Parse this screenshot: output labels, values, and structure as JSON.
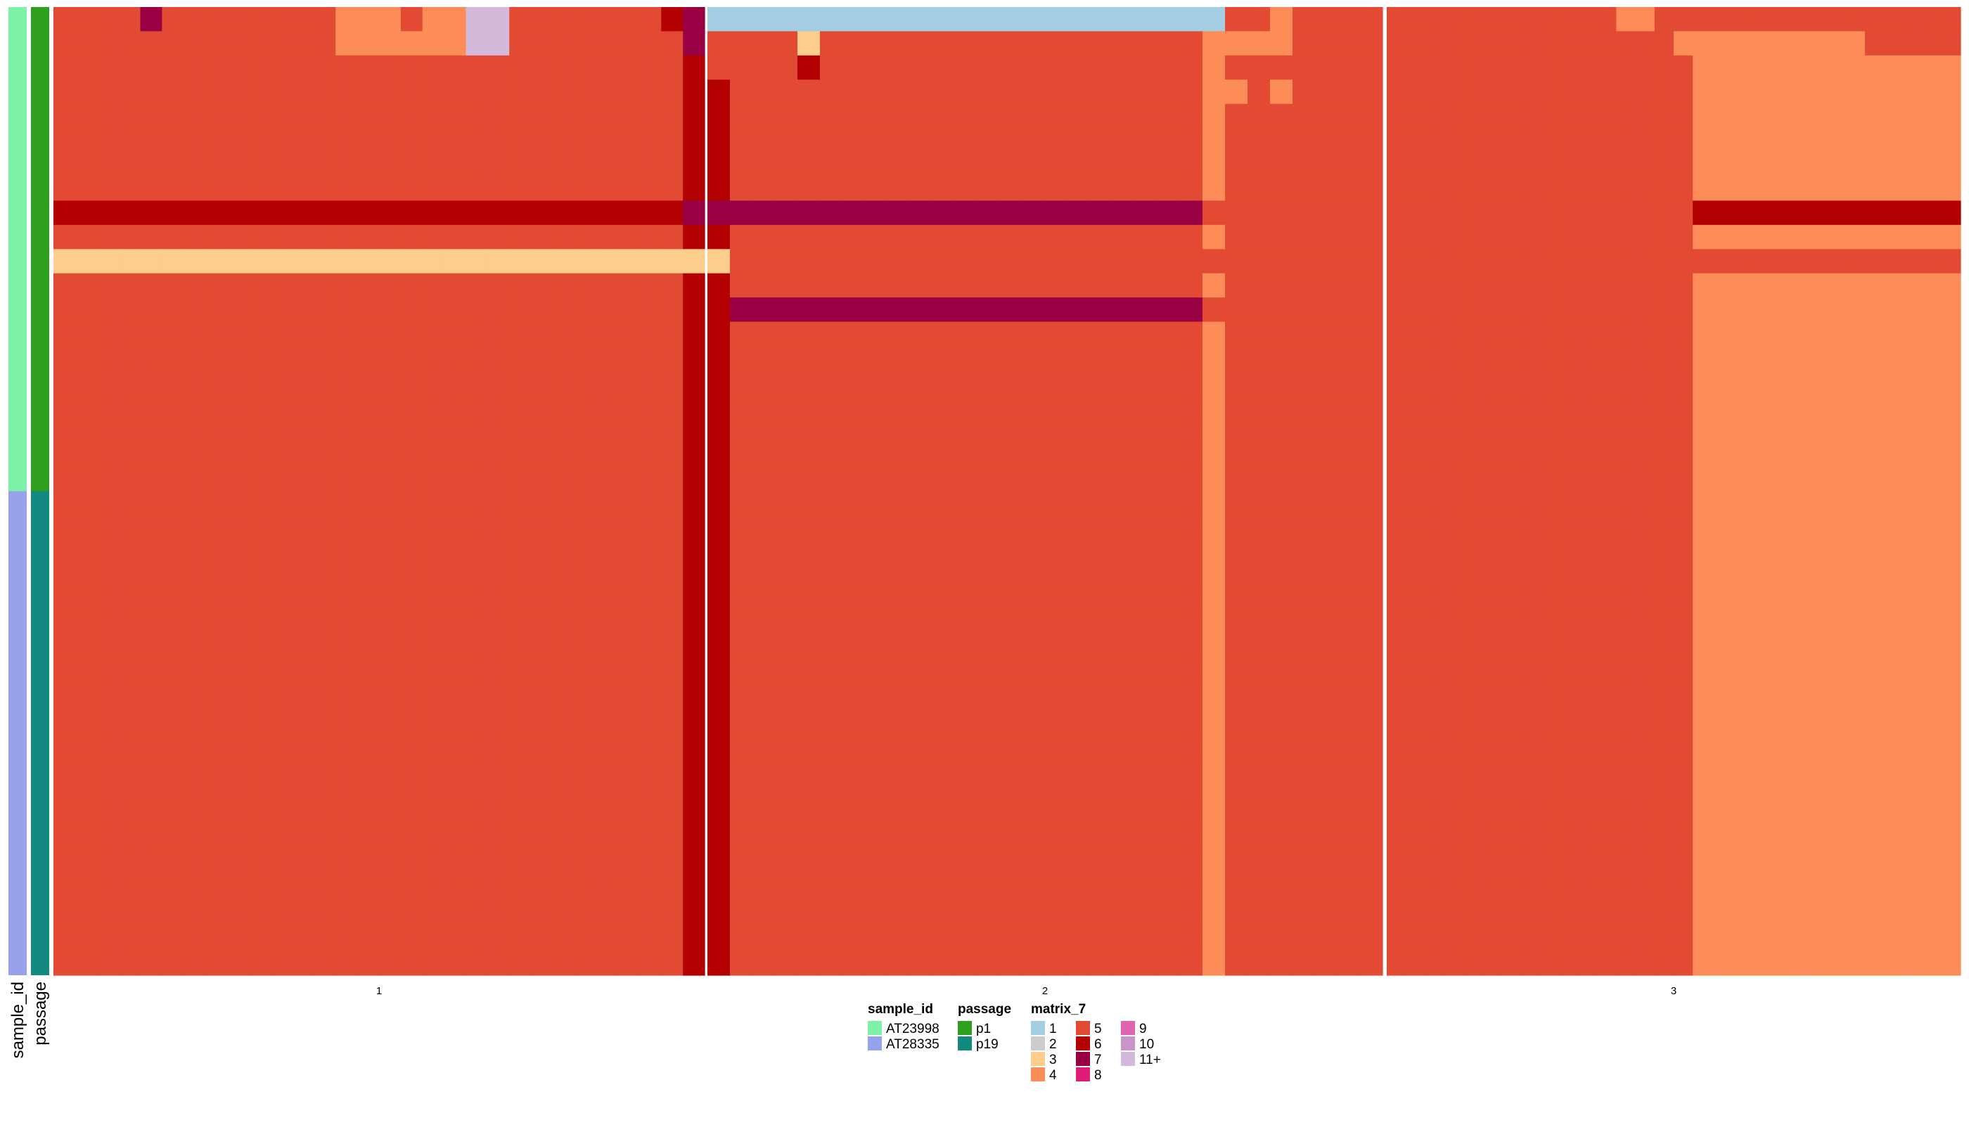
{
  "chart_data": {
    "type": "heatmap",
    "title": "",
    "xlabel": "",
    "ylabel": "",
    "columns_per_panel": 30,
    "column_panels": [
      {
        "label": "1"
      },
      {
        "label": "2"
      },
      {
        "label": "3"
      }
    ],
    "row_annotations": [
      {
        "name": "sample_id",
        "label": "sample_id",
        "values": [
          "AT23998",
          "AT23998",
          "AT23998",
          "AT23998",
          "AT23998",
          "AT23998",
          "AT23998",
          "AT23998",
          "AT23998",
          "AT23998",
          "AT23998",
          "AT23998",
          "AT23998",
          "AT23998",
          "AT23998",
          "AT23998",
          "AT23998",
          "AT23998",
          "AT23998",
          "AT23998",
          "AT28335",
          "AT28335",
          "AT28335",
          "AT28335",
          "AT28335",
          "AT28335",
          "AT28335",
          "AT28335",
          "AT28335",
          "AT28335",
          "AT28335",
          "AT28335",
          "AT28335",
          "AT28335",
          "AT28335",
          "AT28335",
          "AT28335",
          "AT28335",
          "AT28335",
          "AT28335"
        ]
      },
      {
        "name": "passage",
        "label": "passage",
        "values": [
          "p1",
          "p1",
          "p1",
          "p1",
          "p1",
          "p1",
          "p1",
          "p1",
          "p1",
          "p1",
          "p1",
          "p1",
          "p1",
          "p1",
          "p1",
          "p1",
          "p1",
          "p1",
          "p1",
          "p1",
          "p19",
          "p19",
          "p19",
          "p19",
          "p19",
          "p19",
          "p19",
          "p19",
          "p19",
          "p19",
          "p19",
          "p19",
          "p19",
          "p19",
          "p19",
          "p19",
          "p19",
          "p19",
          "p19",
          "p19"
        ]
      }
    ],
    "legends": [
      {
        "title": "sample_id",
        "items": [
          {
            "label": "AT23998",
            "color": "#7FF0A8"
          },
          {
            "label": "AT28335",
            "color": "#98A2EA"
          }
        ]
      },
      {
        "title": "passage",
        "items": [
          {
            "label": "p1",
            "color": "#2EA01E"
          },
          {
            "label": "p19",
            "color": "#13897F"
          }
        ]
      },
      {
        "title": "matrix_7",
        "items": [
          {
            "label": "1",
            "color": "#A6CEE3"
          },
          {
            "label": "2",
            "color": "#CCCCCC"
          },
          {
            "label": "3",
            "color": "#FDCD8C"
          },
          {
            "label": "4",
            "color": "#FC8D59"
          },
          {
            "label": "5",
            "color": "#E34A33"
          },
          {
            "label": "6",
            "color": "#B30000"
          },
          {
            "label": "7",
            "color": "#980043"
          },
          {
            "label": "8",
            "color": "#DD1C77"
          },
          {
            "label": "9",
            "color": "#DF65B0"
          },
          {
            "label": "10",
            "color": "#C994C7"
          },
          {
            "label": "11+",
            "color": "#D4B9DA"
          }
        ]
      }
    ],
    "matrix": [
      "55557555555554445440055555556711111111111111111111111554555555555555555544555555555555555555",
      "55555555555554444440055555555755553555555555555555554444555555555555555555544444444445555555",
      "55555555555555555555555555555655556555555555555555554555555555555555555555554444444444444444",
      "55555555555555555555555555555665555555555555555555554454555555555555555555554444444444444444",
      "55555555555555555555555555555665555555555555555555554555555555555555555555554444444444444444",
      "55555555555555555555555555555665555555555555555555554555555555555555555555554444444444444444",
      "55555555555555555555555555555665555555555555555555554555555555555555555555554444444444444444",
      "55555555555555555555555555555665555555555555555555554555555555555555555555554444444444444444",
      "66666666666666666666666666666777777777777777777777775555555555555555555555556666666666666666",
      "55555555555555555555555555555665555555555555555555554555555555555555555555554444444444444444",
      "33333333333333333333333333333335555555555555555555555555555555555555555555555555555555555555",
      "55555555555555555555555555555665555555555555555555554555555555555555555555554444444444444444",
      "55555555555555555555555555555667777777777777777777775555555555555555555555554444444444444444",
      "55555555555555555555555555555665555555555555555555554555555555555555555555554444444444444444",
      "55555555555555555555555555555665555555555555555555554555555555555555555555554444444444444444",
      "55555555555555555555555555555665555555555555555555554555555555555555555555554444444444444444",
      "55555555555555555555555555555665555555555555555555554555555555555555555555554444444444444444",
      "55555555555555555555555555555665555555555555555555554555555555555555555555554444444444444444",
      "55555555555555555555555555555665555555555555555555554555555555555555555555554444444444444444",
      "55555555555555555555555555555665555555555555555555554555555555555555555555554444444444444444",
      "55555555555555555555555555555665555555555555555555554555555555555555555555554444444444444444",
      "55555555555555555555555555555665555555555555555555554555555555555555555555554444444444444444",
      "55555555555555555555555555555665555555555555555555554555555555555555555555554444444444444444",
      "55555555555555555555555555555665555555555555555555554555555555555555555555554444444444444444",
      "55555555555555555555555555555665555555555555555555554555555555555555555555554444444444444444",
      "55555555555555555555555555555665555555555555555555554555555555555555555555554444444444444444",
      "55555555555555555555555555555665555555555555555555554555555555555555555555554444444444444444",
      "55555555555555555555555555555665555555555555555555554555555555555555555555554444444444444444",
      "55555555555555555555555555555665555555555555555555554555555555555555555555554444444444444444",
      "55555555555555555555555555555665555555555555555555554555555555555555555555554444444444444444",
      "55555555555555555555555555555665555555555555555555554555555555555555555555554444444444444444",
      "55555555555555555555555555555665555555555555555555554555555555555555555555554444444444444444",
      "55555555555555555555555555555665555555555555555555554555555555555555555555554444444444444444",
      "55555555555555555555555555555665555555555555555555554555555555555555555555554444444444444444",
      "55555555555555555555555555555665555555555555555555554555555555555555555555554444444444444444",
      "55555555555555555555555555555665555555555555555555554555555555555555555555554444444444444444",
      "55555555555555555555555555555665555555555555555555554555555555555555555555554444444444444444",
      "55555555555555555555555555555665555555555555555555554555555555555555555555554444444444444444",
      "55555555555555555555555555555665555555555555555555554555555555555555555555554444444444444444",
      "55555555555555555555555555555665555555555555555555554555555555555555555555554444444444444444"
    ]
  }
}
